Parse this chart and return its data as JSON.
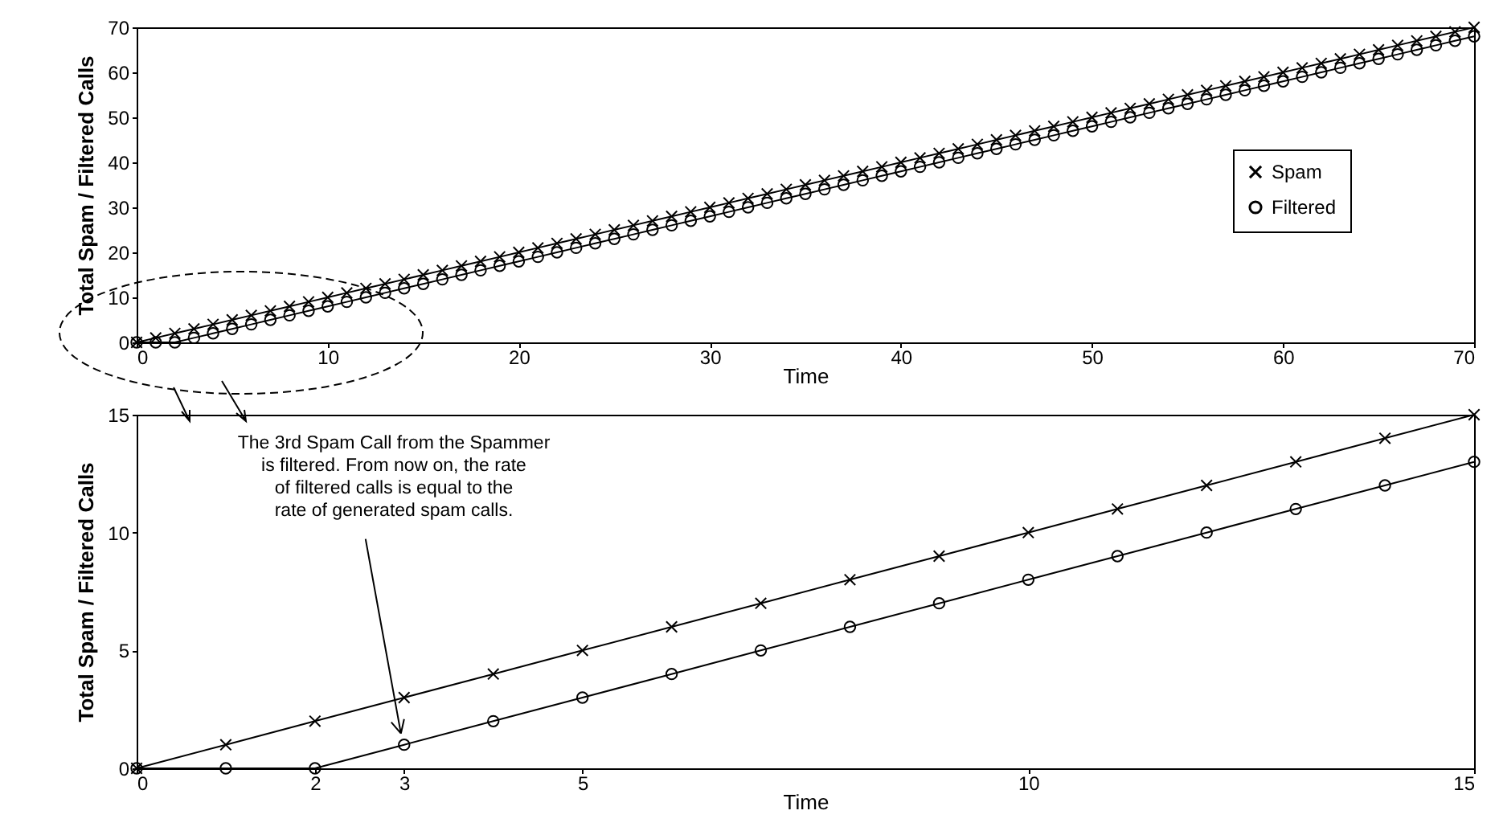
{
  "chart_data": [
    {
      "type": "line",
      "xlabel": "Time",
      "ylabel": "Total Spam / Filtered Calls",
      "xlim": [
        0,
        70
      ],
      "ylim": [
        0,
        70
      ],
      "xticks": [
        0,
        10,
        20,
        30,
        40,
        50,
        60,
        70
      ],
      "yticks": [
        0,
        10,
        20,
        30,
        40,
        50,
        60,
        70
      ],
      "legend": "right",
      "x": [
        0,
        1,
        2,
        3,
        4,
        5,
        6,
        7,
        8,
        9,
        10,
        11,
        12,
        13,
        14,
        15,
        16,
        17,
        18,
        19,
        20,
        21,
        22,
        23,
        24,
        25,
        26,
        27,
        28,
        29,
        30,
        31,
        32,
        33,
        34,
        35,
        36,
        37,
        38,
        39,
        40,
        41,
        42,
        43,
        44,
        45,
        46,
        47,
        48,
        49,
        50,
        51,
        52,
        53,
        54,
        55,
        56,
        57,
        58,
        59,
        60,
        61,
        62,
        63,
        64,
        65,
        66,
        67,
        68,
        69,
        70
      ],
      "series": [
        {
          "name": "Spam",
          "color": "#000000",
          "marker": "cross",
          "values": [
            0,
            1,
            2,
            3,
            4,
            5,
            6,
            7,
            8,
            9,
            10,
            11,
            12,
            13,
            14,
            15,
            16,
            17,
            18,
            19,
            20,
            21,
            22,
            23,
            24,
            25,
            26,
            27,
            28,
            29,
            30,
            31,
            32,
            33,
            34,
            35,
            36,
            37,
            38,
            39,
            40,
            41,
            42,
            43,
            44,
            45,
            46,
            47,
            48,
            49,
            50,
            51,
            52,
            53,
            54,
            55,
            56,
            57,
            58,
            59,
            60,
            61,
            62,
            63,
            64,
            65,
            66,
            67,
            68,
            69,
            70
          ]
        },
        {
          "name": "Filtered",
          "color": "#000000",
          "marker": "circle",
          "values": [
            0,
            0,
            0,
            1,
            2,
            3,
            4,
            5,
            6,
            7,
            8,
            9,
            10,
            11,
            12,
            13,
            14,
            15,
            16,
            17,
            18,
            19,
            20,
            21,
            22,
            23,
            24,
            25,
            26,
            27,
            28,
            29,
            30,
            31,
            32,
            33,
            34,
            35,
            36,
            37,
            38,
            39,
            40,
            41,
            42,
            43,
            44,
            45,
            46,
            47,
            48,
            49,
            50,
            51,
            52,
            53,
            54,
            55,
            56,
            57,
            58,
            59,
            60,
            61,
            62,
            63,
            64,
            65,
            66,
            67,
            68
          ]
        }
      ]
    },
    {
      "type": "line",
      "xlabel": "Time",
      "ylabel": "Total Spam / Filtered Calls",
      "xlim": [
        0,
        15
      ],
      "ylim": [
        0,
        15
      ],
      "xticks": [
        0,
        2,
        3,
        5,
        10,
        15
      ],
      "yticks": [
        0,
        5,
        10,
        15
      ],
      "legend": "right",
      "x": [
        0,
        1,
        2,
        3,
        4,
        5,
        6,
        7,
        8,
        9,
        10,
        11,
        12,
        13,
        14,
        15
      ],
      "series": [
        {
          "name": "Spam",
          "color": "#000000",
          "marker": "cross",
          "values": [
            0,
            1,
            2,
            3,
            4,
            5,
            6,
            7,
            8,
            9,
            10,
            11,
            12,
            13,
            14,
            15
          ]
        },
        {
          "name": "Filtered",
          "color": "#000000",
          "marker": "circle",
          "values": [
            0,
            0,
            0,
            1,
            2,
            3,
            4,
            5,
            6,
            7,
            8,
            9,
            10,
            11,
            12,
            13
          ]
        }
      ],
      "annotations": [
        {
          "text": "The 3rd Spam Call from the Spammer is filtered. From now on, the rate of filtered calls is equal to the rate of generated spam calls.",
          "x": 3,
          "y": 1
        }
      ]
    }
  ]
}
